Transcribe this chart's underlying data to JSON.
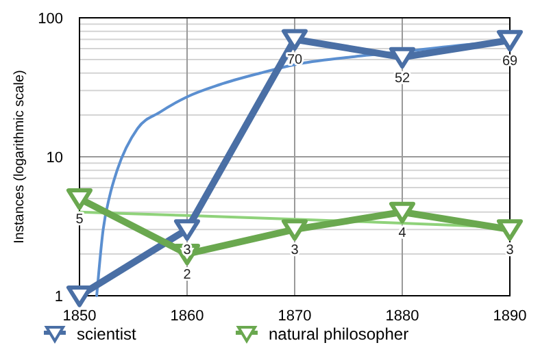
{
  "chart_data": {
    "type": "line",
    "ylabel": "Instances (logarithmic scale)",
    "log": true,
    "grid": true,
    "legend": "bottom",
    "marker": "triangle",
    "line_style": "solid",
    "x": [
      1850,
      1860,
      1870,
      1880,
      1890
    ],
    "xlim": [
      1850,
      1890
    ],
    "xticks": [
      1850,
      1860,
      1870,
      1880,
      1890
    ],
    "ylim": [
      1,
      100
    ],
    "yticks": [
      1,
      {
        "value": 2,
        "label": null
      },
      {
        "value": 3,
        "label": null
      },
      {
        "value": 4,
        "label": null
      },
      {
        "value": 5,
        "label": null
      },
      {
        "value": 6,
        "label": null
      },
      {
        "value": 7,
        "label": null
      },
      {
        "value": 8,
        "label": null
      },
      {
        "value": 9,
        "label": null
      },
      10,
      {
        "value": 20,
        "label": null
      },
      {
        "value": 30,
        "label": null
      },
      {
        "value": 40,
        "label": null
      },
      {
        "value": 50,
        "label": null
      },
      {
        "value": 60,
        "label": null
      },
      {
        "value": 70,
        "label": null
      },
      {
        "value": 80,
        "label": null
      },
      {
        "value": 90,
        "label": null
      },
      100
    ],
    "series": [
      {
        "type": "line",
        "marker": "none",
        "color": "#5b8fd0",
        "x": [
          1851.6,
          1852.2,
          1852.8,
          1853.5,
          1855.4,
          1857.5,
          1860,
          1863,
          1866.8,
          1870,
          1875,
          1880,
          1885,
          1890
        ],
        "values": [
          1,
          3,
          5.2,
          8,
          16,
          21,
          27,
          33,
          40,
          46,
          52,
          57,
          63,
          68
        ]
      },
      {
        "type": "line",
        "marker": "none",
        "color": "#8fd27a",
        "x": [
          1850,
          1860,
          1870,
          1880,
          1890
        ],
        "values": [
          4,
          3.78,
          3.55,
          3.33,
          3.1
        ]
      },
      {
        "name": "scientist",
        "color": "#4a6fa5",
        "values": [
          1,
          3,
          70,
          52,
          69
        ],
        "value_labels": [
          null,
          "3",
          "70",
          "52",
          "69"
        ]
      },
      {
        "name": "natural philosopher",
        "color": "#6aa84f",
        "values": [
          5,
          2,
          3,
          4,
          3
        ],
        "value_labels": [
          "5",
          "2",
          "3",
          "4",
          "3"
        ]
      }
    ]
  }
}
